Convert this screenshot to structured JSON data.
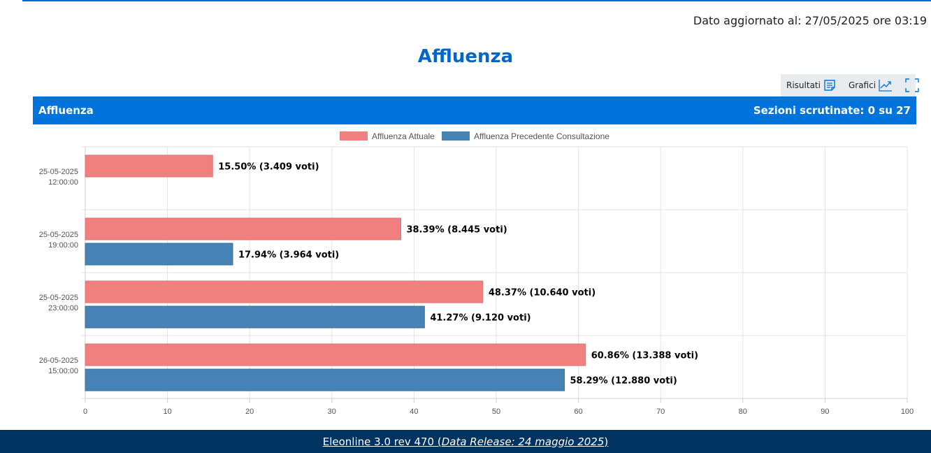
{
  "updated_label": "Dato aggiornato al: 27/05/2025 ore 03:19",
  "page_title": "Affluenza",
  "toolbar": {
    "results_label": "Risultati",
    "charts_label": "Grafici",
    "icons": [
      "document-icon",
      "line-chart-icon",
      "fullscreen-icon"
    ]
  },
  "bar_header": {
    "left": "Affluenza",
    "right": "Sezioni scrutinate: 0 su 27"
  },
  "colors": {
    "accent": "#0066cc",
    "header_bar": "#0073dd",
    "footer": "#00335f",
    "current": "#f08080",
    "previous": "#4682b4"
  },
  "chart_data": {
    "type": "bar",
    "orientation": "horizontal",
    "categories": [
      [
        "25-05-2025",
        "12:00:00"
      ],
      [
        "25-05-2025",
        "19:00:00"
      ],
      [
        "25-05-2025",
        "23:00:00"
      ],
      [
        "26-05-2025",
        "15:00:00"
      ]
    ],
    "series": [
      {
        "name": "Affluenza Attuale",
        "color": "#f08080",
        "values": [
          15.5,
          38.39,
          48.37,
          60.86
        ],
        "labels": [
          "15.50% (3.409 voti)",
          "38.39% (8.445 voti)",
          "48.37% (10.640 voti)",
          "60.86% (13.388 voti)"
        ]
      },
      {
        "name": "Affluenza Precedente Consultazione",
        "color": "#4682b4",
        "values": [
          null,
          17.94,
          41.27,
          58.29
        ],
        "labels": [
          "",
          "17.94% (3.964 voti)",
          "41.27% (9.120 voti)",
          "58.29% (12.880 voti)"
        ]
      }
    ],
    "xlim": [
      0,
      100
    ],
    "xticks": [
      0,
      10,
      20,
      30,
      40,
      50,
      60,
      70,
      80,
      90,
      100
    ],
    "grid": true,
    "legend": "top-center"
  },
  "footer": {
    "prefix": "Eleonline 3.0 rev 470 (",
    "release": "Data Release: 24 maggio 2025",
    "suffix": ")"
  }
}
